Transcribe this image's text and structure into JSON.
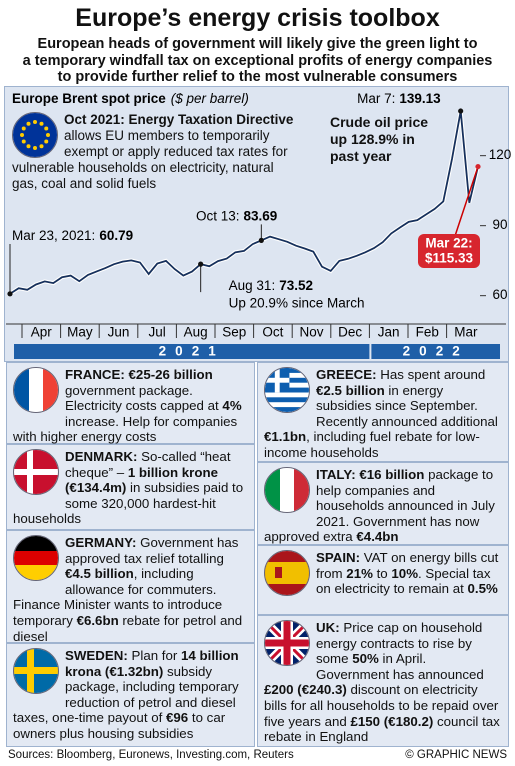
{
  "title": "Europe’s energy crisis toolbox",
  "subtitle": [
    "European heads of government will likely give the green light to",
    "a temporary windfall tax on exceptional profits of energy companies",
    "to provide further relief to the most vulnerable consumers"
  ],
  "chart_data": {
    "type": "line",
    "title": "Europe Brent spot price",
    "y_unit": "($ per barrel)",
    "x_axis_labels": [
      "Apr",
      "May",
      "Jun",
      "Jul",
      "Aug",
      "Sep",
      "Oct",
      "Nov",
      "Dec",
      "Jan",
      "Feb",
      "Mar"
    ],
    "years": [
      "2021",
      "2022"
    ],
    "series": [
      {
        "name": "Brent",
        "color": "#16305c",
        "values": [
          60.79,
          63.2,
          62.5,
          64.8,
          66.1,
          65.4,
          67.9,
          68.6,
          66.2,
          68.9,
          70.4,
          71.8,
          73.5,
          74.6,
          75.1,
          74.2,
          69.3,
          73.8,
          74.9,
          71.4,
          68.6,
          70.3,
          73.52,
          72.6,
          74.8,
          75.9,
          78.6,
          79.2,
          82.1,
          83.69,
          85.3,
          84.2,
          83.1,
          81.4,
          80.2,
          78.9,
          72.4,
          70.6,
          74.9,
          75.8,
          77.1,
          78.6,
          80.4,
          82.9,
          86.7,
          89.2,
          91.6,
          92.4,
          94.8,
          97.2,
          100.4,
          118.6,
          139.13,
          99.8,
          115.33
        ]
      }
    ],
    "ylim": [
      50,
      140
    ],
    "yticks": [
      60,
      90,
      120
    ],
    "annotations": [
      {
        "label": "Mar 23, 2021:",
        "value": 60.79
      },
      {
        "label": "Oct 13:",
        "value": 83.69
      },
      {
        "label": "Aug 31:",
        "value": 73.52,
        "note": "Up 20.9% since March"
      },
      {
        "label": "Mar 7:",
        "value": 139.13
      },
      {
        "label": "Mar 22:",
        "value": 115.33,
        "value_label": "$115.33"
      }
    ],
    "callout": "Crude oil price up 128.9% in past year",
    "note": {
      "title": "Oct 2021: Energy Taxation Directive",
      "text": "allows EU members to temporarily exempt or apply reduced tax rates for vulnerable households on electricity, natural gas, coal and solid fuels"
    }
  },
  "countries": [
    {
      "text": [
        {
          "text": "FRANCE: €25-26 billion",
          "bold": true
        },
        " government package. Electricity costs capped at ",
        {
          "text": "4%",
          "bold": true
        },
        " increase. Help for companies with higher energy costs"
      ]
    },
    {
      "text": [
        {
          "text": "DENMARK:",
          "bold": true
        },
        " So-called “heat cheque” – ",
        {
          "text": "1 billion krone (€134.4m)",
          "bold": true
        },
        " in subsidies paid to some 320,000 hardest-hit households"
      ]
    },
    {
      "text": [
        {
          "text": "GERMANY:",
          "bold": true
        },
        " Government has approved tax relief totalling ",
        {
          "text": "€4.5 billion",
          "bold": true
        },
        ", including allowance for commuters. Finance Minister wants to introduce temporary ",
        {
          "text": "€6.6bn",
          "bold": true
        },
        " rebate for petrol and diesel"
      ]
    },
    {
      "text": [
        {
          "text": "SWEDEN:",
          "bold": true
        },
        " Plan for ",
        {
          "text": "14 billion krona (€1.32bn)",
          "bold": true
        },
        " subsidy package, including temporary reduction of petrol and diesel taxes, one-time payout of ",
        {
          "text": "€96",
          "bold": true
        },
        " to car owners plus housing subsidies"
      ]
    },
    {
      "text": [
        {
          "text": "GREECE:",
          "bold": true
        },
        " Has spent around ",
        {
          "text": "€2.5 billion",
          "bold": true
        },
        " in energy subsidies since September. Recently announced additional ",
        {
          "text": "€1.1bn",
          "bold": true
        },
        ", including fuel rebate for low-income households"
      ]
    },
    {
      "text": [
        {
          "text": "ITALY: €16 billion",
          "bold": true
        },
        " package to help companies and households announced in July 2021. Government has now approved extra ",
        {
          "text": "€4.4bn",
          "bold": true
        }
      ]
    },
    {
      "text": [
        {
          "text": "SPAIN:",
          "bold": true
        },
        " VAT on energy bills cut from ",
        {
          "text": "21%",
          "bold": true
        },
        " to ",
        {
          "text": "10%",
          "bold": true
        },
        ". Special tax on electricity to remain at ",
        {
          "text": "0.5%",
          "bold": true
        }
      ]
    },
    {
      "text": [
        {
          "text": "UK:",
          "bold": true
        },
        " Price cap on household energy contracts to rise by some ",
        {
          "text": "50%",
          "bold": true
        },
        " in April. Government has announced ",
        {
          "text": "£200 (€240.3)",
          "bold": true
        },
        " discount on electricity bills for all households to be repaid over five years and ",
        {
          "text": "£150 (€180.2)",
          "bold": true
        },
        " council tax rebate in England"
      ]
    }
  ],
  "footer": {
    "sources": "Sources: Bloomberg, Euronews, Investing.com, Reuters",
    "credit": "© GRAPHIC NEWS"
  }
}
